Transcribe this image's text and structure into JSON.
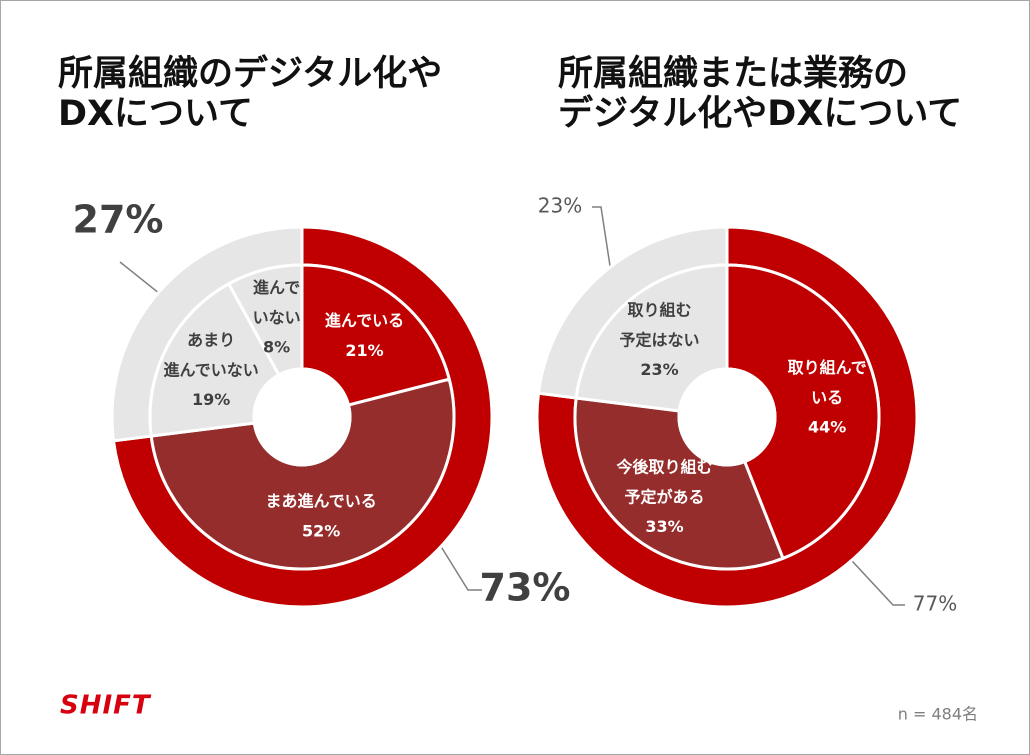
{
  "chart_data": [
    {
      "type": "pie",
      "title": "所属組織のデジタル化や\nDXについて",
      "inner": {
        "categories": [
          "進んでいる",
          "まあ進んでいる",
          "あまり\n進んでいない",
          "進んで\nいない"
        ],
        "values": [
          21,
          52,
          19,
          8
        ],
        "value_labels": [
          "21%",
          "52%",
          "19%",
          "8%"
        ],
        "colors": [
          "#c00000",
          "#952d2d",
          "#e7e6e6",
          "#e7e6e6"
        ]
      },
      "outer": {
        "values": [
          73,
          27
        ],
        "value_labels": [
          "73%",
          "27%"
        ],
        "colors": [
          "#c00000",
          "#e7e6e6"
        ]
      }
    },
    {
      "type": "pie",
      "title": "所属組織または業務の\nデジタル化やDXについて",
      "inner": {
        "categories": [
          "取り組んで\nいる",
          "今後取り組む\n予定がある",
          "取り組む\n予定はない"
        ],
        "values": [
          44,
          33,
          23
        ],
        "value_labels": [
          "44%",
          "33%",
          "23%"
        ],
        "colors": [
          "#c00000",
          "#952d2d",
          "#e7e6e6"
        ]
      },
      "outer": {
        "values": [
          77,
          23
        ],
        "value_labels": [
          "77%",
          "23%"
        ],
        "colors": [
          "#c00000",
          "#e7e6e6"
        ]
      }
    }
  ],
  "footer": {
    "logo": "SHIFT",
    "note": "n = 484名"
  }
}
